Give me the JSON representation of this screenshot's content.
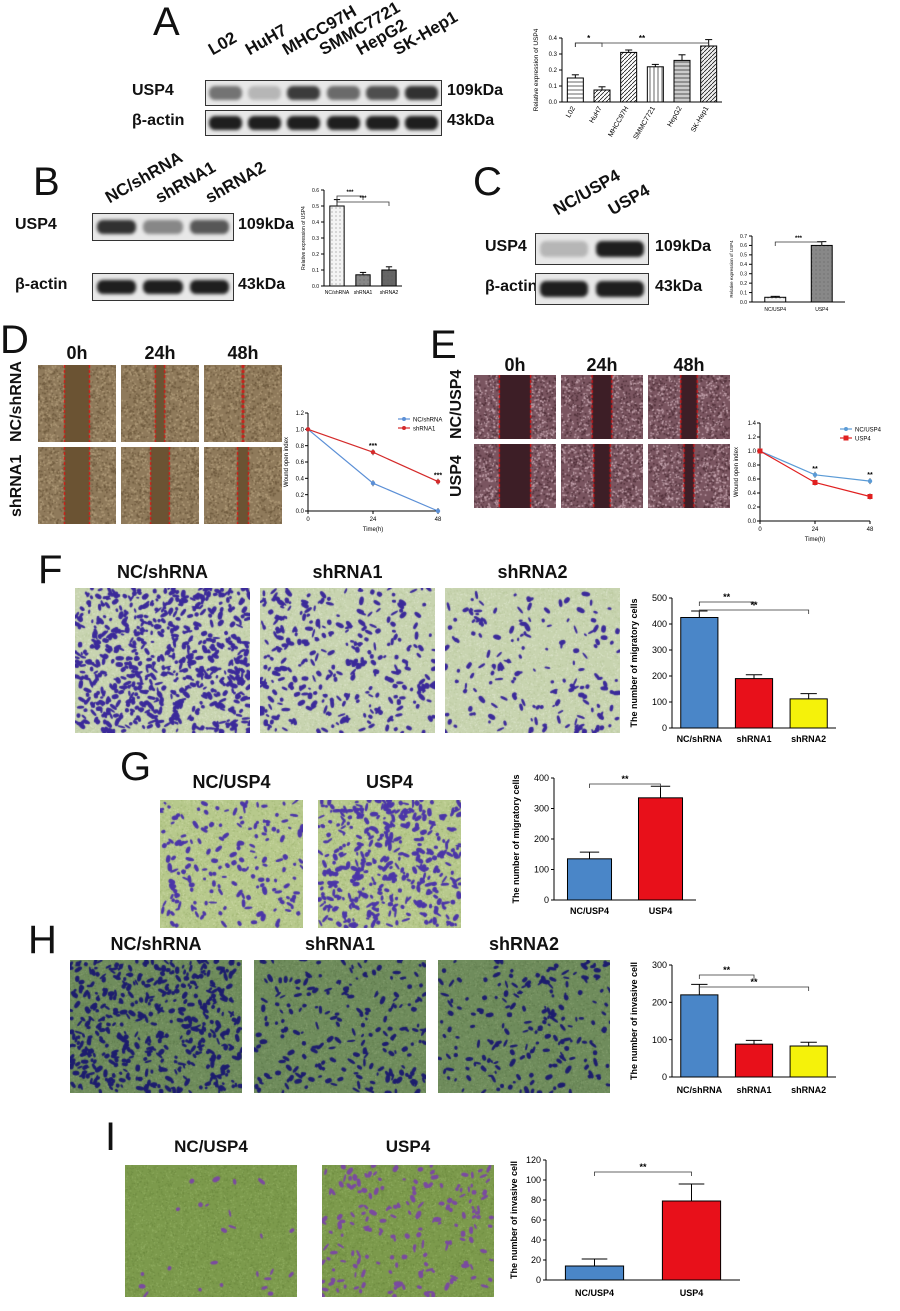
{
  "panels": {
    "A": "A",
    "B": "B",
    "C": "C",
    "D": "D",
    "E": "E",
    "F": "F",
    "G": "G",
    "H": "H",
    "I": "I"
  },
  "blotA": {
    "lanes": [
      "L02",
      "HuH7",
      "MHCC97H",
      "SMMC7721",
      "HepG2",
      "SK-Hep1"
    ],
    "rows": [
      "USP4",
      "β-actin"
    ],
    "kda": [
      "109kDa",
      "43kDa"
    ],
    "intensity_usp4": [
      0.55,
      0.2,
      0.85,
      0.6,
      0.75,
      0.9
    ]
  },
  "blotB": {
    "lanes": [
      "NC/shRNA",
      "shRNA1",
      "shRNA2"
    ],
    "rows": [
      "USP4",
      "β-actin"
    ],
    "kda": [
      "109kDa",
      "43kDa"
    ],
    "intensity_usp4": [
      0.9,
      0.45,
      0.7
    ]
  },
  "blotC": {
    "lanes": [
      "NC/USP4",
      "USP4"
    ],
    "rows": [
      "USP4",
      "β-actin"
    ],
    "kda": [
      "109kDa",
      "43kDa"
    ],
    "intensity_usp4": [
      0.2,
      1.0
    ]
  },
  "woundD": {
    "cols": [
      "0h",
      "24h",
      "48h"
    ],
    "rows": [
      "NC/shRNA",
      "shRNA1"
    ]
  },
  "woundE": {
    "cols": [
      "0h",
      "24h",
      "48h"
    ],
    "rows": [
      "NC/USP4",
      "USP4"
    ]
  },
  "transF": {
    "cols": [
      "NC/shRNA",
      "shRNA1",
      "shRNA2"
    ],
    "density": [
      1.0,
      0.45,
      0.25
    ]
  },
  "transG": {
    "cols": [
      "NC/USP4",
      "USP4"
    ],
    "density": [
      0.35,
      0.8
    ]
  },
  "transH": {
    "cols": [
      "NC/shRNA",
      "shRNA1",
      "shRNA2"
    ],
    "density": [
      0.7,
      0.3,
      0.28
    ]
  },
  "transI": {
    "cols": [
      "NC/USP4",
      "USP4"
    ],
    "density": [
      0.05,
      0.35
    ]
  },
  "chart_data": [
    {
      "id": "A",
      "type": "bar",
      "categories": [
        "L02",
        "HuH7",
        "MHCC97H",
        "SMMC7721",
        "HepG2",
        "SK-Hep1"
      ],
      "values": [
        0.15,
        0.075,
        0.31,
        0.22,
        0.26,
        0.35
      ],
      "errors": [
        0.02,
        0.02,
        0.015,
        0.015,
        0.035,
        0.04
      ],
      "ylabel": "Relative expression of USP4",
      "ylim": [
        0,
        0.4
      ],
      "yticks": [
        "0.0",
        "0.1",
        "0.2",
        "0.3",
        "0.4"
      ],
      "sig": [
        {
          "from": 0,
          "to": 1,
          "label": "*"
        },
        {
          "from": 0,
          "to": 5,
          "label": "**"
        }
      ]
    },
    {
      "id": "B",
      "type": "bar",
      "categories": [
        "NC/shRNA",
        "shRNA1",
        "shRNA2"
      ],
      "values": [
        0.5,
        0.07,
        0.1
      ],
      "errors": [
        0.04,
        0.015,
        0.02
      ],
      "ylabel": "Relative expression of USP4",
      "ylim": [
        0,
        0.6
      ],
      "yticks": [
        "0.0",
        "0.1",
        "0.2",
        "0.3",
        "0.4",
        "0.5",
        "0.6"
      ],
      "sig": [
        {
          "from": 0,
          "to": 1,
          "label": "***"
        },
        {
          "from": 0,
          "to": 2,
          "label": "***"
        }
      ]
    },
    {
      "id": "C",
      "type": "bar",
      "categories": [
        "NC/USP4",
        "USP4"
      ],
      "values": [
        0.05,
        0.6
      ],
      "errors": [
        0.01,
        0.04
      ],
      "ylabel": "Relative expression of USP4",
      "ylim": [
        0,
        0.7
      ],
      "yticks": [
        "0.0",
        "0.1",
        "0.2",
        "0.3",
        "0.4",
        "0.5",
        "0.6",
        "0.7"
      ],
      "sig": [
        {
          "from": 0,
          "to": 1,
          "label": "***"
        }
      ]
    },
    {
      "id": "D",
      "type": "line",
      "x": [
        0,
        24,
        48
      ],
      "xticks": [
        "0",
        "24",
        "48"
      ],
      "series": [
        {
          "name": "NC/shRNA",
          "values": [
            1.0,
            0.34,
            0.0
          ],
          "color": "#5b8fd6"
        },
        {
          "name": "shRNA1",
          "values": [
            1.0,
            0.72,
            0.36
          ],
          "color": "#d42a2a"
        }
      ],
      "xlabel": "Time(h)",
      "ylabel": "Wound open index",
      "ylim": [
        0,
        1.2
      ],
      "yticks": [
        "0.0",
        "0.2",
        "0.4",
        "0.6",
        "0.8",
        "1.0",
        "1.2"
      ],
      "annotations": [
        "***",
        "***"
      ],
      "legend": "top-right"
    },
    {
      "id": "E",
      "type": "line",
      "x": [
        0,
        24,
        48
      ],
      "xticks": [
        "0",
        "24",
        "48"
      ],
      "series": [
        {
          "name": "NC/USP4",
          "values": [
            1.0,
            0.66,
            0.57
          ],
          "color": "#5b9bd6"
        },
        {
          "name": "USP4",
          "values": [
            1.0,
            0.55,
            0.35
          ],
          "color": "#e02020"
        }
      ],
      "xlabel": "Time(h)",
      "ylabel": "Wound open index",
      "ylim": [
        0,
        1.4
      ],
      "yticks": [
        "0.0",
        "0.2",
        "0.4",
        "0.6",
        "0.8",
        "1.0",
        "1.2",
        "1.4"
      ],
      "annotations": [
        "**",
        "**"
      ],
      "legend": "top-right"
    },
    {
      "id": "F",
      "type": "bar",
      "categories": [
        "NC/shRNA",
        "shRNA1",
        "shRNA2"
      ],
      "values": [
        425,
        190,
        112
      ],
      "errors": [
        25,
        15,
        20
      ],
      "colors": [
        "#4a86c8",
        "#e8101a",
        "#f5f20a"
      ],
      "ylabel": "The number of migratory cells",
      "ylim": [
        0,
        500
      ],
      "yticks": [
        "0",
        "100",
        "200",
        "300",
        "400",
        "500"
      ],
      "sig": [
        {
          "from": 0,
          "to": 1,
          "label": "**"
        },
        {
          "from": 0,
          "to": 2,
          "label": "**"
        }
      ]
    },
    {
      "id": "G",
      "type": "bar",
      "categories": [
        "NC/USP4",
        "USP4"
      ],
      "values": [
        135,
        335
      ],
      "errors": [
        22,
        38
      ],
      "colors": [
        "#4a86c8",
        "#e8101a"
      ],
      "ylabel": "The number of migratory cells",
      "ylim": [
        0,
        400
      ],
      "yticks": [
        "0",
        "100",
        "200",
        "300",
        "400"
      ],
      "sig": [
        {
          "from": 0,
          "to": 1,
          "label": "**"
        }
      ]
    },
    {
      "id": "H",
      "type": "bar",
      "categories": [
        "NC/shRNA",
        "shRNA1",
        "shRNA2"
      ],
      "values": [
        220,
        88,
        83
      ],
      "errors": [
        28,
        10,
        10
      ],
      "colors": [
        "#4a86c8",
        "#e8101a",
        "#f5f20a"
      ],
      "ylabel": "The number of invasive cell",
      "ylim": [
        0,
        300
      ],
      "yticks": [
        "0",
        "100",
        "200",
        "300"
      ],
      "sig": [
        {
          "from": 0,
          "to": 1,
          "label": "**"
        },
        {
          "from": 0,
          "to": 2,
          "label": "**"
        }
      ]
    },
    {
      "id": "I",
      "type": "bar",
      "categories": [
        "NC/USP4",
        "USP4"
      ],
      "values": [
        14,
        79
      ],
      "errors": [
        7,
        17
      ],
      "colors": [
        "#4a86c8",
        "#e8101a"
      ],
      "ylabel": "The number of invasive cell",
      "ylim": [
        0,
        120
      ],
      "yticks": [
        "0",
        "20",
        "40",
        "60",
        "80",
        "100",
        "120"
      ],
      "sig": [
        {
          "from": 0,
          "to": 1,
          "label": "**"
        }
      ]
    }
  ]
}
